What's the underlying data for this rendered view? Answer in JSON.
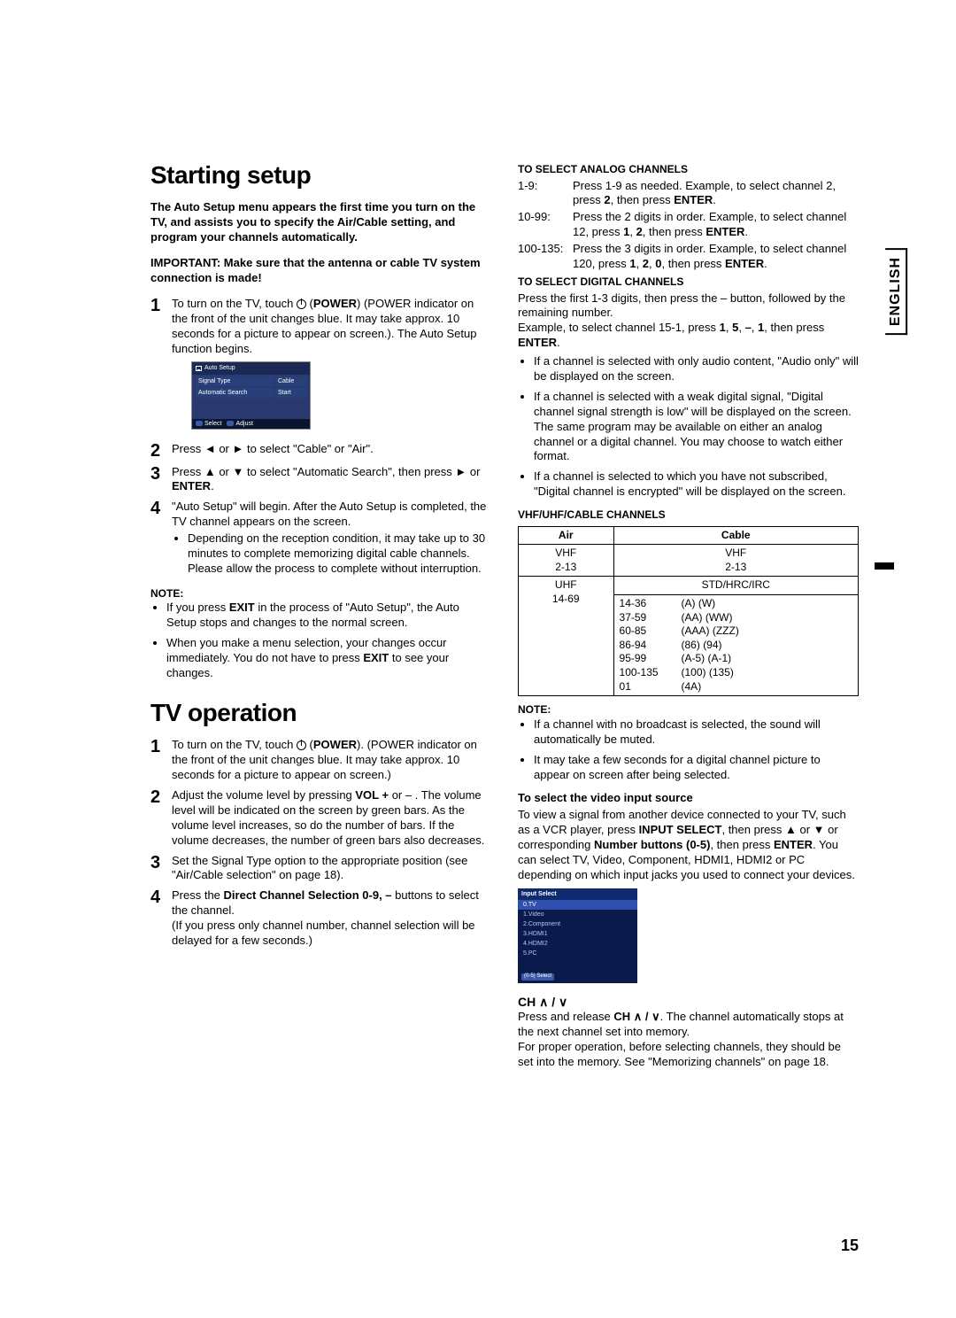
{
  "page": {
    "number": "15",
    "lang_tab": "ENGLISH"
  },
  "left": {
    "h1": "Starting setup",
    "intro": "The Auto Setup menu appears the first time you turn on the TV, and assists you to specify the Air/Cable setting, and program your channels automatically.",
    "important": "IMPORTANT: Make sure that the antenna or cable TV system connection is made!",
    "steps": {
      "s1a": "To turn on the TV, touch ",
      "s1b": " (POWER indicator on the front of the unit changes blue. It may take approx. 10 seconds for a picture to appear on screen.). The Auto Setup function begins.",
      "s1power": "POWER",
      "s2": "Press ◄ or ► to select \"Cable\" or \"Air\".",
      "s3a": "Press ▲ or ▼ to select \"Automatic Search\", then press ► or ",
      "s3b": ".",
      "s3enter": "ENTER",
      "s4": "\"Auto Setup\" will begin. After the Auto Setup is completed, the TV channel appears on the screen.",
      "s4bullet": "Depending on the reception condition, it may take up to 30 minutes to complete memorizing digital cable channels. Please allow the process to complete without interruption."
    },
    "note_hdr": "NOTE:",
    "notes": {
      "n1a": "If you press ",
      "n1exit": "EXIT",
      "n1b": " in the process of \"Auto Setup\", the Auto Setup stops and changes to the normal screen.",
      "n2a": "When you make a menu selection, your changes occur immediately. You do not have to press ",
      "n2exit": "EXIT",
      "n2b": " to see your changes."
    },
    "h2": "TV operation",
    "op": {
      "s1a": "To turn on the TV, touch ",
      "s1b": ". (POWER indicator on the front of the unit changes blue. It may take approx. 10 seconds for a picture to appear on screen.)",
      "s1power": "POWER",
      "s2a": "Adjust the volume level by pressing ",
      "s2vol": "VOL +",
      "s2b": " or – . The volume level will be indicated on the screen by green bars. As the volume level increases, so do the number of bars. If the volume decreases, the number of green bars also decreases.",
      "s3": "Set the Signal Type option to the appropriate position (see \"Air/Cable selection\" on page 18).",
      "s4a": "Press the ",
      "s4b": " buttons to select the channel.",
      "s4btn": "Direct Channel Selection 0-9, –",
      "s4c": "(If you press only channel number, channel selection will be delayed for a few seconds.)"
    },
    "osd": {
      "title": "Auto Setup",
      "row1k": "Signal Type",
      "row1v": "Cable",
      "row2k": "Automatic Search",
      "row2v": "Start",
      "f1": "Select",
      "f2": "Adjust"
    }
  },
  "right": {
    "analog_hdr": "TO SELECT ANALOG CHANNELS",
    "rng": {
      "r1l": "1-9:",
      "r1a": "Press 1-9 as needed. Example, to select channel 2, press ",
      "r1b1": "2",
      "r1c": ", then press ",
      "r1enter": "ENTER",
      "r1d": ".",
      "r2l": "10-99:",
      "r2a": "Press the 2 digits in order. Example, to select channel 12, press ",
      "r2b1": "1",
      "r2b2": "2",
      "r2c": ", then press ",
      "r2enter": "ENTER",
      "r2d": ".",
      "r3l": "100-135:",
      "r3a": "Press the 3 digits in order. Example, to select channel 120, press ",
      "r3b1": "1",
      "r3b2": "2",
      "r3b3": "0",
      "r3c": ", then press ",
      "r3enter": "ENTER",
      "r3d": "."
    },
    "digital_hdr": "TO SELECT DIGITAL CHANNELS",
    "dig_a": "Press the first 1-3 digits, then press the – button, followed by the remaining number.",
    "dig_b_pre": "Example, to select channel 15-1, press ",
    "dig_b1": "1",
    "dig_b2": "5",
    "dig_b3": "–",
    "dig_b4": "1",
    "dig_b_mid": ", then press ",
    "dig_enter": "ENTER",
    "dig_b_post": ".",
    "dig_bullets": {
      "b1": "If a channel is selected with only audio content, \"Audio only\" will be displayed on the screen.",
      "b2": "If a channel is selected with a weak digital signal, \"Digital channel signal strength is low\" will be displayed on the screen.\nThe same program may be available on either an analog channel or a digital channel. You may choose to watch either format.",
      "b3": "If a channel is selected to which you have not subscribed, \"Digital channel is encrypted\" will be displayed on the screen."
    },
    "tbl_hdr": "VHF/UHF/CABLE CHANNELS",
    "tbl": {
      "h1": "Air",
      "h2": "Cable",
      "a1": "VHF",
      "a2": "2-13",
      "a3": "UHF",
      "a4": "14-69",
      "c1": "VHF",
      "c2": "2-13",
      "c3": "STD/HRC/IRC",
      "rows": [
        [
          "14-36",
          "(A) (W)"
        ],
        [
          "37-59",
          "(AA) (WW)"
        ],
        [
          "60-85",
          "(AAA) (ZZZ)"
        ],
        [
          "86-94",
          "(86) (94)"
        ],
        [
          "95-99",
          "(A-5) (A-1)"
        ],
        [
          "100-135",
          "(100) (135)"
        ],
        [
          "01",
          "(4A)"
        ]
      ]
    },
    "note_hdr": "NOTE:",
    "notes2": {
      "n1": "If a channel with no broadcast is selected, the sound will automatically be muted.",
      "n2": "It may take a few seconds for a digital channel picture to appear on screen after being selected."
    },
    "vid_hdr": "To select the video input source",
    "vid_a": "To view a signal from another device connected to your TV, such as a VCR player, press ",
    "vid_input": "INPUT SELECT",
    "vid_b": ", then press ▲ or ▼ or corresponding ",
    "vid_num": "Number buttons (0-5)",
    "vid_c": ", then press ",
    "vid_enter": "ENTER",
    "vid_d": ". You can select TV, Video, Component, HDMI1, HDMI2 or PC depending on which input jacks you used to connect your devices.",
    "osd2": {
      "title": "Input Select",
      "i0": "0.TV",
      "i1": "1.Video",
      "i2": "2.Component",
      "i3": "3.HDMI1",
      "i4": "4.HDMI2",
      "i5": "5.PC",
      "ftr": "(0-5) Select"
    },
    "ch_hdr": "CH ∧ / ∨",
    "ch_a_pre": "Press and release ",
    "ch_a_btn": "CH ∧ / ∨",
    "ch_a_post": ". The channel automatically stops at the next channel set into memory.",
    "ch_b": "For proper operation, before selecting channels, they should be set into the memory. See \"Memorizing channels\" on page 18."
  }
}
